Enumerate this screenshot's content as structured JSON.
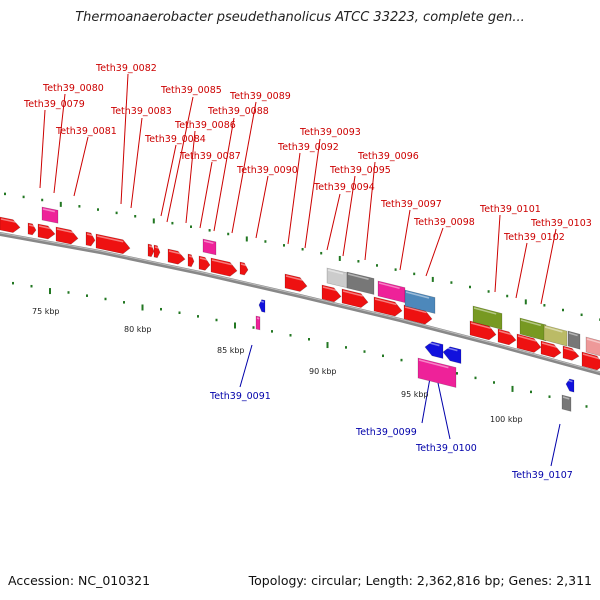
{
  "title": "Thermoanaerobacter pseudethanolicus ATCC 33223, complete gen...",
  "footer": {
    "accession": "Accession: NC_010321",
    "summary": "Topology: circular; Length: 2,362,816 bp; Genes: 2,311"
  },
  "colors": {
    "forward_label": "#cc0000",
    "reverse_label": "#0000aa",
    "gene_red": "#ee1111",
    "gene_pink": "#ee2299",
    "gene_blue": "#1111dd",
    "gene_grey": "#777777",
    "gene_light_grey": "#cccccc",
    "gene_steel": "#4d88bb",
    "gene_olive": "#779922",
    "gene_khaki": "#bbbb66",
    "gene_salmon": "#ee9999",
    "tick_green": "#227722"
  },
  "scale": {
    "ticks": [
      "75 kbp",
      "80 kbp",
      "85 kbp",
      "90 kbp",
      "95 kbp",
      "100 kbp"
    ]
  },
  "forward_labels": [
    "Teth39_0079",
    "Teth39_0080",
    "Teth39_0081",
    "Teth39_0082",
    "Teth39_0083",
    "Teth39_0084",
    "Teth39_0085",
    "Teth39_0086",
    "Teth39_0087",
    "Teth39_0088",
    "Teth39_0089",
    "Teth39_0090",
    "Teth39_0092",
    "Teth39_0093",
    "Teth39_0094",
    "Teth39_0095",
    "Teth39_0096",
    "Teth39_0097",
    "Teth39_0098",
    "Teth39_0101",
    "Teth39_0102",
    "Teth39_0103"
  ],
  "reverse_labels": [
    "Teth39_0091",
    "Teth39_0099",
    "Teth39_0100",
    "Teth39_0107"
  ]
}
